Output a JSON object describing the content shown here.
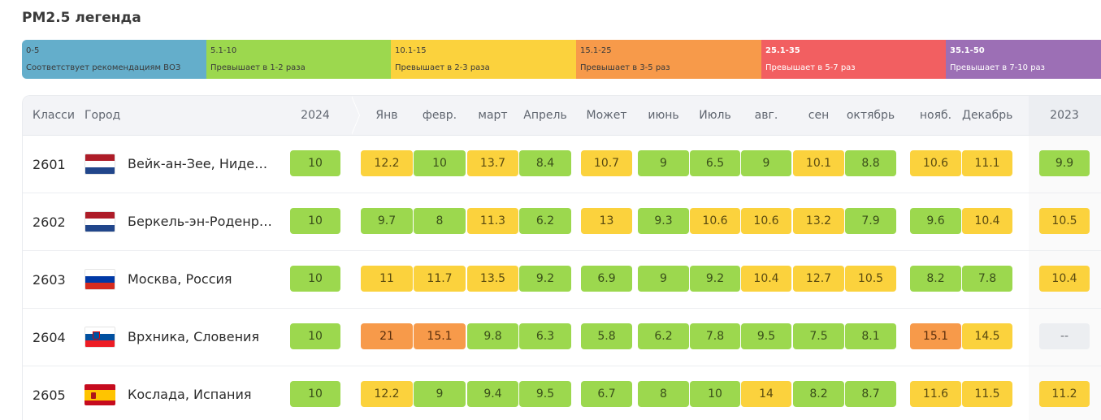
{
  "title": "PM2.5 легенда",
  "legend": [
    {
      "range": "0-5",
      "desc": "Соответствует рекомендациям ВОЗ",
      "color": "#64aecb",
      "tone": "dark"
    },
    {
      "range": "5.1-10",
      "desc": "Превышает в 1-2 раза",
      "color": "#9cd84e",
      "tone": "dark"
    },
    {
      "range": "10.1-15",
      "desc": "Превышает в 2-3 раза",
      "color": "#fbd23d",
      "tone": "dark"
    },
    {
      "range": "15.1-25",
      "desc": "Превышает в 3-5 раз",
      "color": "#f79a4a",
      "tone": "dark"
    },
    {
      "range": "25.1-35",
      "desc": "Превышает в 5-7 раз",
      "color": "#f25f61",
      "tone": "light"
    },
    {
      "range": "35.1-50",
      "desc": "Превышает в 7-10 раз",
      "color": "#9c6fb5",
      "tone": "light"
    }
  ],
  "headers": {
    "rank": "Класси",
    "city": "Город",
    "year": "2024",
    "months": [
      "Янв",
      "февр.",
      "март",
      "Апрель",
      "Может",
      "июнь",
      "Июль",
      "авг.",
      "сен",
      "октябрь",
      "нояб.",
      "Декабрь"
    ],
    "prev_year": "2023"
  },
  "rows": [
    {
      "rank": "2601",
      "flag": "nl",
      "city": "Вейк-ан-Зее, Нидерланды",
      "year": {
        "v": "10",
        "c": "g"
      },
      "months": [
        {
          "v": "12.2",
          "c": "y"
        },
        {
          "v": "10",
          "c": "g"
        },
        {
          "v": "13.7",
          "c": "y"
        },
        {
          "v": "8.4",
          "c": "g"
        },
        {
          "v": "10.7",
          "c": "y"
        },
        {
          "v": "9",
          "c": "g"
        },
        {
          "v": "6.5",
          "c": "g"
        },
        {
          "v": "9",
          "c": "g"
        },
        {
          "v": "10.1",
          "c": "y"
        },
        {
          "v": "8.8",
          "c": "g"
        },
        {
          "v": "10.6",
          "c": "y"
        },
        {
          "v": "11.1",
          "c": "y"
        }
      ],
      "prev": {
        "v": "9.9",
        "c": "g"
      }
    },
    {
      "rank": "2602",
      "flag": "nl",
      "city": "Беркель-эн-Роденрейс, Нидерланды",
      "year": {
        "v": "10",
        "c": "g"
      },
      "months": [
        {
          "v": "9.7",
          "c": "g"
        },
        {
          "v": "8",
          "c": "g"
        },
        {
          "v": "11.3",
          "c": "y"
        },
        {
          "v": "6.2",
          "c": "g"
        },
        {
          "v": "13",
          "c": "y"
        },
        {
          "v": "9.3",
          "c": "g"
        },
        {
          "v": "10.6",
          "c": "y"
        },
        {
          "v": "10.6",
          "c": "y"
        },
        {
          "v": "13.2",
          "c": "y"
        },
        {
          "v": "7.9",
          "c": "g"
        },
        {
          "v": "9.6",
          "c": "g"
        },
        {
          "v": "10.4",
          "c": "y"
        }
      ],
      "prev": {
        "v": "10.5",
        "c": "y"
      }
    },
    {
      "rank": "2603",
      "flag": "ru",
      "city": "Москва, Россия",
      "year": {
        "v": "10",
        "c": "g"
      },
      "months": [
        {
          "v": "11",
          "c": "y"
        },
        {
          "v": "11.7",
          "c": "y"
        },
        {
          "v": "13.5",
          "c": "y"
        },
        {
          "v": "9.2",
          "c": "g"
        },
        {
          "v": "6.9",
          "c": "g"
        },
        {
          "v": "9",
          "c": "g"
        },
        {
          "v": "9.2",
          "c": "g"
        },
        {
          "v": "10.4",
          "c": "y"
        },
        {
          "v": "12.7",
          "c": "y"
        },
        {
          "v": "10.5",
          "c": "y"
        },
        {
          "v": "8.2",
          "c": "g"
        },
        {
          "v": "7.8",
          "c": "g"
        }
      ],
      "prev": {
        "v": "10.4",
        "c": "y"
      }
    },
    {
      "rank": "2604",
      "flag": "si",
      "city": "Врхника, Словения",
      "year": {
        "v": "10",
        "c": "g"
      },
      "months": [
        {
          "v": "21",
          "c": "o"
        },
        {
          "v": "15.1",
          "c": "o"
        },
        {
          "v": "9.8",
          "c": "g"
        },
        {
          "v": "6.3",
          "c": "g"
        },
        {
          "v": "5.8",
          "c": "g"
        },
        {
          "v": "6.2",
          "c": "g"
        },
        {
          "v": "7.8",
          "c": "g"
        },
        {
          "v": "9.5",
          "c": "g"
        },
        {
          "v": "7.5",
          "c": "g"
        },
        {
          "v": "8.1",
          "c": "g"
        },
        {
          "v": "15.1",
          "c": "o"
        },
        {
          "v": "14.5",
          "c": "y"
        }
      ],
      "prev": {
        "v": "--",
        "c": "n"
      }
    },
    {
      "rank": "2605",
      "flag": "es",
      "city": "Кослада, Испания",
      "year": {
        "v": "10",
        "c": "g"
      },
      "months": [
        {
          "v": "12.2",
          "c": "y"
        },
        {
          "v": "9",
          "c": "g"
        },
        {
          "v": "9.4",
          "c": "g"
        },
        {
          "v": "9.5",
          "c": "g"
        },
        {
          "v": "6.7",
          "c": "g"
        },
        {
          "v": "8",
          "c": "g"
        },
        {
          "v": "10",
          "c": "g"
        },
        {
          "v": "14",
          "c": "y"
        },
        {
          "v": "8.2",
          "c": "g"
        },
        {
          "v": "8.7",
          "c": "g"
        },
        {
          "v": "11.6",
          "c": "y"
        },
        {
          "v": "11.5",
          "c": "y"
        }
      ],
      "prev": {
        "v": "11.2",
        "c": "y"
      }
    }
  ]
}
